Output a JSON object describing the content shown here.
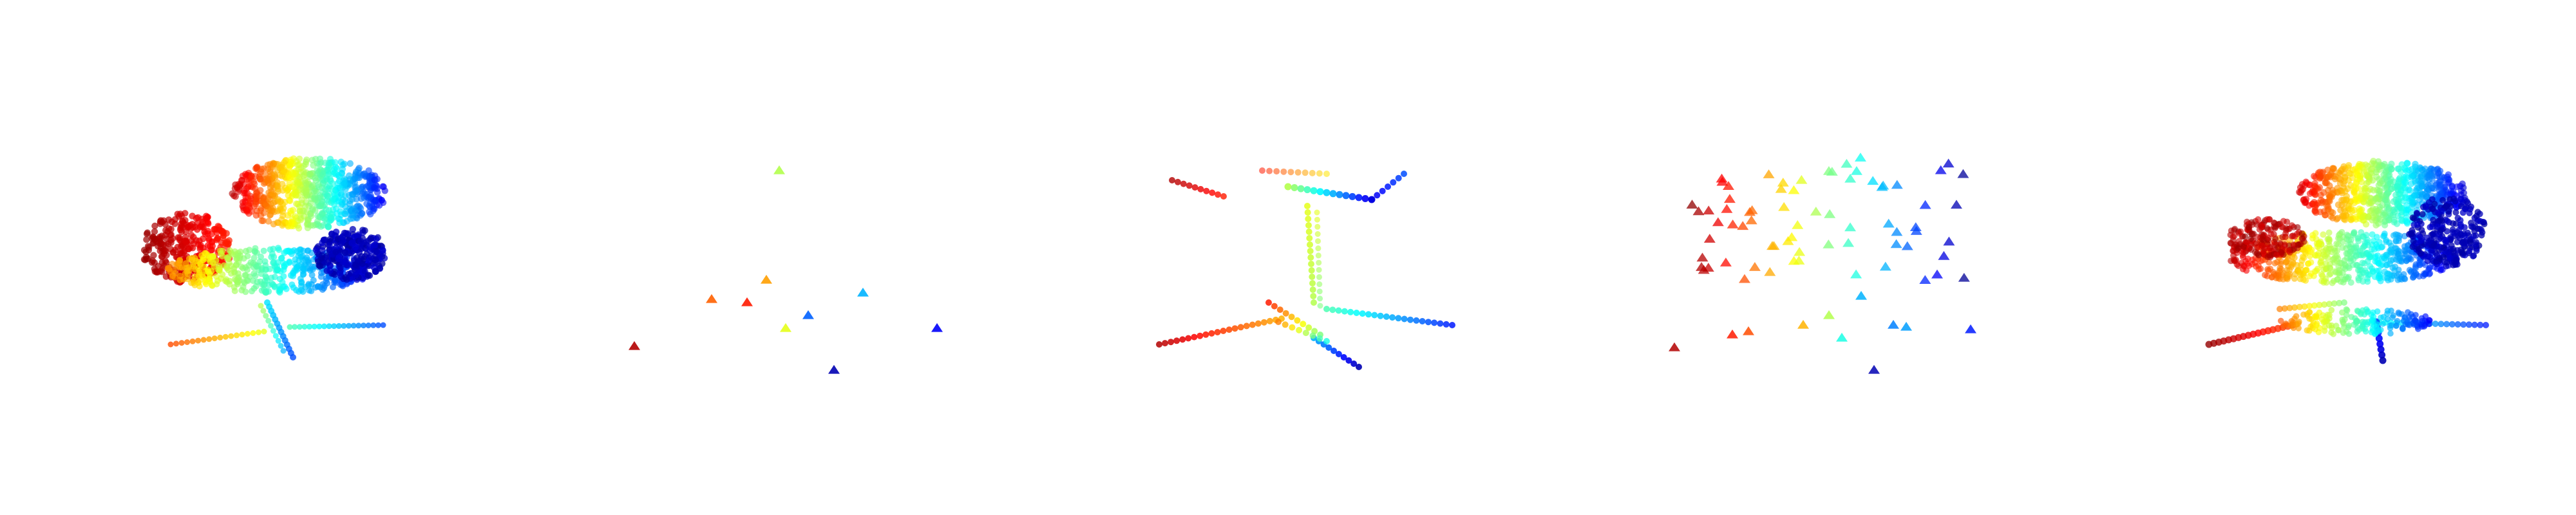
{
  "panels": [
    {
      "id": "dense-chair-a"
    },
    {
      "id": "sparse-triangles-a"
    },
    {
      "id": "wire-chair"
    },
    {
      "id": "sparse-triangles-b"
    },
    {
      "id": "dense-chair-b"
    }
  ],
  "colormap": "jet",
  "colors": {
    "jet_red": "#cc0000",
    "jet_orange": "#ff7f00",
    "jet_yellow": "#ffe000",
    "jet_green": "#7fff7f",
    "jet_cyan": "#00d5ff",
    "jet_blue": "#1f55ff",
    "jet_navy": "#00008b"
  }
}
